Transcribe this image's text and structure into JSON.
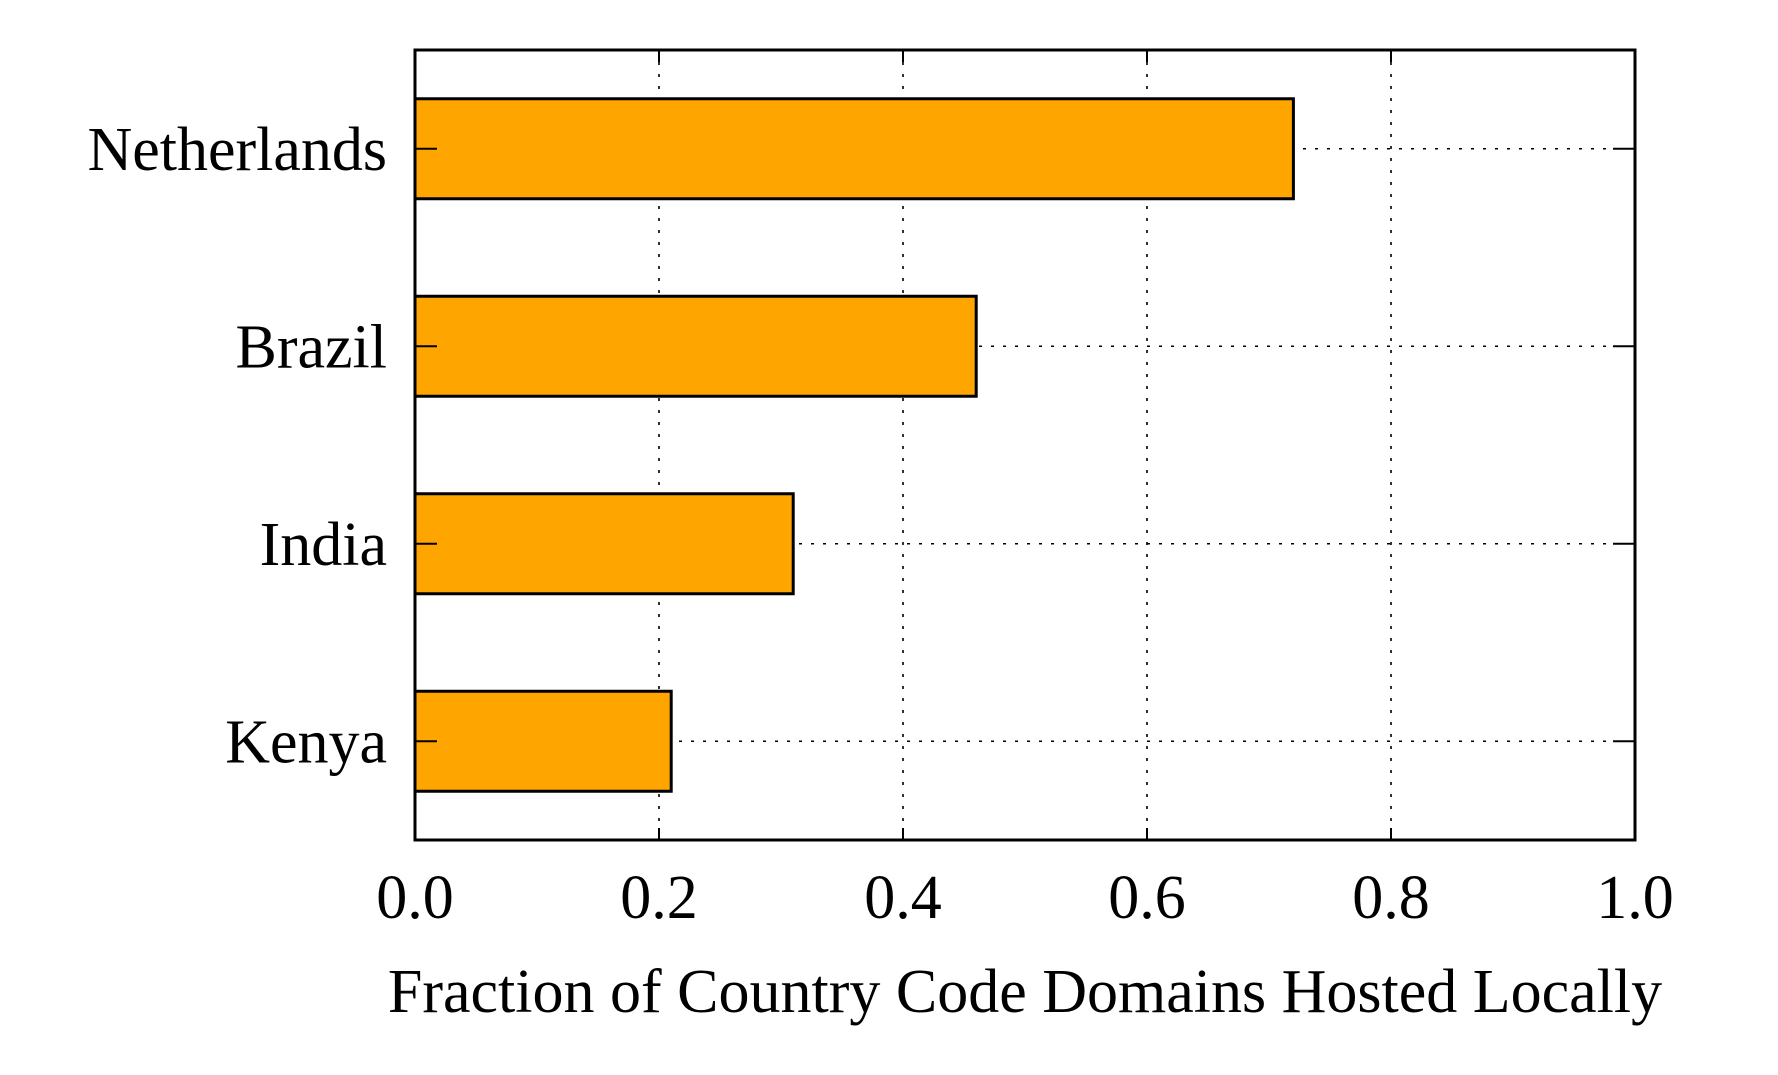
{
  "chart_data": {
    "type": "bar",
    "orientation": "horizontal",
    "categories": [
      "Netherlands",
      "Brazil",
      "India",
      "Kenya"
    ],
    "values": [
      0.72,
      0.46,
      0.31,
      0.21
    ],
    "title": "",
    "xlabel": "Fraction of Country Code Domains Hosted Locally",
    "ylabel": "",
    "xlim": [
      0.0,
      1.0
    ],
    "xticks": [
      "0.0",
      "0.2",
      "0.4",
      "0.6",
      "0.8",
      "1.0"
    ],
    "grid": true,
    "grid_style": "dotted",
    "bar_color": "#ffa500",
    "edge_color": "#000000"
  }
}
